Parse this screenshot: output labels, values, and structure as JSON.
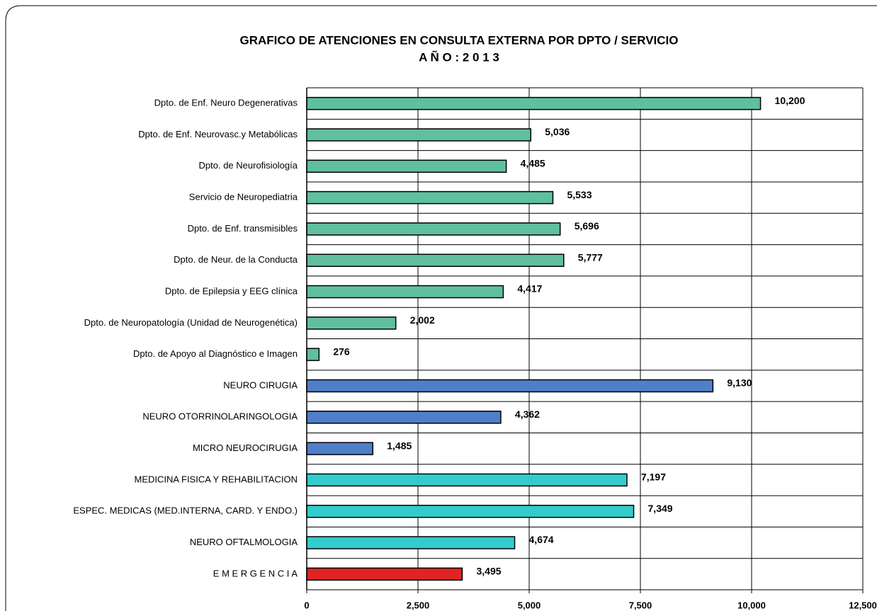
{
  "chart_data": {
    "type": "bar",
    "orientation": "horizontal",
    "title": "GRAFICO DE ATENCIONES EN CONSULTA  EXTERNA  POR DPTO / SERVICIO",
    "subtitle": "A Ñ O : 2 0 1 3",
    "categories": [
      "Dpto. de Enf. Neuro Degenerativas",
      "Dpto. de Enf. Neurovasc.y Metabólicas",
      "Dpto. de Neurofisiología",
      "Servicio de Neuropediatria",
      "Dpto. de Enf. transmisibles",
      "Dpto. de Neur. de la Conducta",
      "Dpto. de Epilepsia y EEG clínica",
      "Dpto. de Neuropatología (Unidad de Neurogenética)",
      "Dpto. de Apoyo al Diagnóstico e Imagen",
      "NEURO CIRUGIA",
      "NEURO OTORRINOLARINGOLOGIA",
      "MICRO NEUROCIRUGIA",
      "MEDICINA  FISICA Y REHABILITACION",
      "ESPEC. MEDICAS (MED.INTERNA, CARD. Y ENDO.)",
      "NEURO OFTALMOLOGIA",
      "E M E R G E N C I A"
    ],
    "values": [
      10200,
      5036,
      4485,
      5533,
      5696,
      5777,
      4417,
      2002,
      276,
      9130,
      4362,
      1485,
      7197,
      7349,
      4674,
      3495
    ],
    "value_labels": [
      "10,200",
      "5,036",
      "4,485",
      "5,533",
      "5,696",
      "5,777",
      "4,417",
      "2,002",
      "276",
      "9,130",
      "4,362",
      "1,485",
      "7,197",
      "7,349",
      "4,674",
      "3,495"
    ],
    "colors": [
      "#5fbf9f",
      "#5fbf9f",
      "#5fbf9f",
      "#5fbf9f",
      "#5fbf9f",
      "#5fbf9f",
      "#5fbf9f",
      "#5fbf9f",
      "#5fbf9f",
      "#4f7fc8",
      "#4f7fc8",
      "#4f7fc8",
      "#33cccc",
      "#33cccc",
      "#33cccc",
      "#e02424"
    ],
    "xlim": [
      0,
      12500
    ],
    "xticks": [
      0,
      {
        "value": 2500,
        "label": "2,500"
      },
      {
        "value": 5000,
        "label": "5,000"
      },
      {
        "value": 7500,
        "label": "7,500"
      },
      {
        "value": 10000,
        "label": "10,000"
      },
      {
        "value": 12500,
        "label": "12,500"
      }
    ],
    "grid": true
  }
}
